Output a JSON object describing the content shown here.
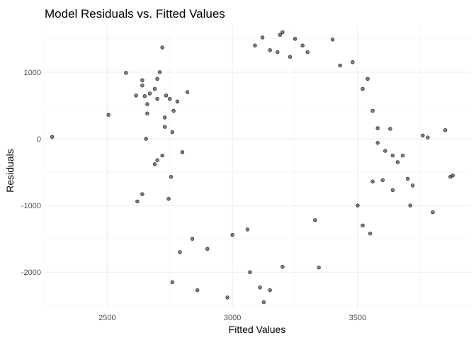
{
  "chart_data": {
    "type": "scatter",
    "title": "Model Residuals vs. Fitted Values",
    "xlabel": "Fitted Values",
    "ylabel": "Residuals",
    "xlim": [
      2250,
      3950
    ],
    "ylim": [
      -2550,
      1700
    ],
    "x_ticks": [
      2500,
      3000,
      3500
    ],
    "x_tick_labels": [
      "2500",
      "3000",
      "3500"
    ],
    "y_ticks": [
      1000,
      0,
      -1000,
      -2000
    ],
    "y_tick_labels": [
      "1000",
      "0",
      "-1000",
      "-2000"
    ],
    "grid": true,
    "legend": "none",
    "point_color": "#000000",
    "point_opacity": 0.5,
    "series": [
      {
        "points": [
          [
            2280,
            30
          ],
          [
            2505,
            360
          ],
          [
            2575,
            990
          ],
          [
            2615,
            650
          ],
          [
            2640,
            880
          ],
          [
            2640,
            800
          ],
          [
            2650,
            640
          ],
          [
            2660,
            520
          ],
          [
            2660,
            380
          ],
          [
            2670,
            680
          ],
          [
            2655,
            0
          ],
          [
            2700,
            600
          ],
          [
            2710,
            1000
          ],
          [
            2720,
            1370
          ],
          [
            2700,
            900
          ],
          [
            2690,
            -380
          ],
          [
            2620,
            -940
          ],
          [
            2640,
            -830
          ],
          [
            2730,
            180
          ],
          [
            2745,
            -900
          ],
          [
            2755,
            -570
          ],
          [
            2760,
            -2150
          ],
          [
            2765,
            420
          ],
          [
            2780,
            560
          ],
          [
            2735,
            650
          ],
          [
            2700,
            -320
          ],
          [
            2750,
            600
          ],
          [
            2790,
            -1700
          ],
          [
            2720,
            -250
          ],
          [
            2690,
            750
          ],
          [
            2730,
            320
          ],
          [
            2760,
            100
          ],
          [
            2800,
            -200
          ],
          [
            2820,
            700
          ],
          [
            2840,
            -1500
          ],
          [
            2860,
            -2270
          ],
          [
            2900,
            -1650
          ],
          [
            2980,
            -2380
          ],
          [
            3070,
            -2000
          ],
          [
            3110,
            -2230
          ],
          [
            3125,
            -2450
          ],
          [
            3150,
            -2270
          ],
          [
            3200,
            -1920
          ],
          [
            3345,
            -1930
          ],
          [
            3400,
            1490
          ],
          [
            3430,
            1100
          ],
          [
            3480,
            1150
          ],
          [
            3520,
            750
          ],
          [
            3540,
            900
          ],
          [
            3560,
            420
          ],
          [
            3580,
            160
          ],
          [
            3610,
            -180
          ],
          [
            3640,
            -250
          ],
          [
            3660,
            -350
          ],
          [
            3680,
            -250
          ],
          [
            3700,
            -600
          ],
          [
            3710,
            -1000
          ],
          [
            3720,
            -700
          ],
          [
            3760,
            50
          ],
          [
            3780,
            20
          ],
          [
            3800,
            -1100
          ],
          [
            3850,
            130
          ],
          [
            3870,
            -570
          ],
          [
            3880,
            -550
          ],
          [
            3630,
            150
          ],
          [
            3580,
            -60
          ],
          [
            3500,
            -1000
          ],
          [
            3520,
            -1300
          ],
          [
            3550,
            -1420
          ],
          [
            3560,
            -640
          ],
          [
            3600,
            -620
          ],
          [
            3640,
            -770
          ],
          [
            3330,
            -1220
          ],
          [
            3000,
            -1440
          ],
          [
            3060,
            -1360
          ],
          [
            3090,
            1400
          ],
          [
            3120,
            1520
          ],
          [
            3190,
            1560
          ],
          [
            3200,
            1600
          ],
          [
            3250,
            1500
          ],
          [
            3280,
            1400
          ],
          [
            3150,
            1330
          ],
          [
            3300,
            1300
          ],
          [
            3230,
            1230
          ],
          [
            3180,
            1300
          ]
        ]
      }
    ]
  }
}
